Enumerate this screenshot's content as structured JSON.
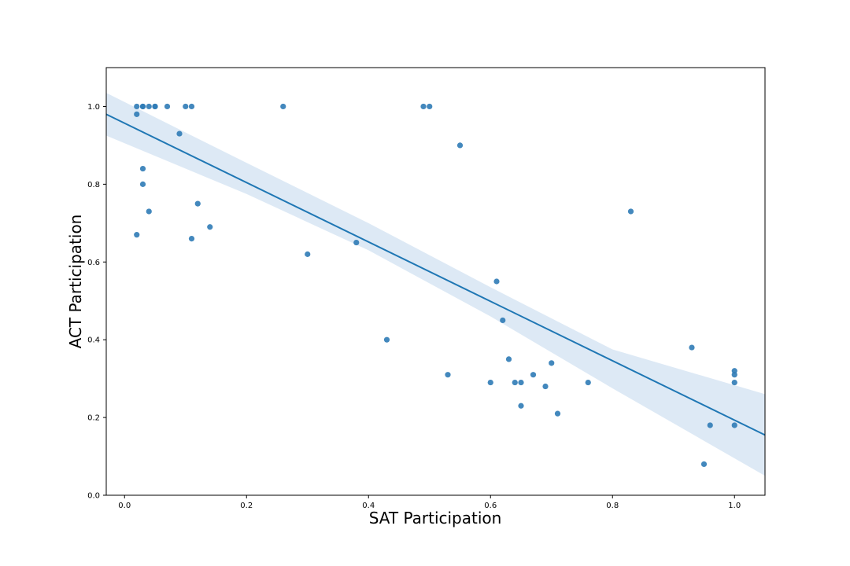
{
  "chart_data": {
    "type": "scatter",
    "title": "",
    "xlabel": "SAT Participation",
    "ylabel": "ACT Participation",
    "xlim": [
      -0.03,
      1.05
    ],
    "ylim": [
      0.0,
      1.1
    ],
    "xticks": [
      0.0,
      0.2,
      0.4,
      0.6,
      0.8,
      1.0
    ],
    "xtick_labels": [
      "0.0",
      "0.2",
      "0.4",
      "0.6",
      "0.8",
      "1.0"
    ],
    "yticks": [
      0.0,
      0.2,
      0.4,
      0.6,
      0.8,
      1.0
    ],
    "ytick_labels": [
      "0.0",
      "0.2",
      "0.4",
      "0.6",
      "0.8",
      "1.0"
    ],
    "grid": false,
    "colors": {
      "points": "#2f7bb6",
      "regression_line": "#1f77b4",
      "confidence_band": "#c6dbef"
    },
    "points": [
      {
        "x": 0.02,
        "y": 1.0
      },
      {
        "x": 0.03,
        "y": 1.0
      },
      {
        "x": 0.03,
        "y": 1.0
      },
      {
        "x": 0.04,
        "y": 1.0
      },
      {
        "x": 0.05,
        "y": 1.0
      },
      {
        "x": 0.05,
        "y": 1.0
      },
      {
        "x": 0.07,
        "y": 1.0
      },
      {
        "x": 0.1,
        "y": 1.0
      },
      {
        "x": 0.11,
        "y": 1.0
      },
      {
        "x": 0.26,
        "y": 1.0
      },
      {
        "x": 0.49,
        "y": 1.0
      },
      {
        "x": 0.5,
        "y": 1.0
      },
      {
        "x": 0.02,
        "y": 0.98
      },
      {
        "x": 0.09,
        "y": 0.93
      },
      {
        "x": 0.55,
        "y": 0.9
      },
      {
        "x": 0.03,
        "y": 0.84
      },
      {
        "x": 0.03,
        "y": 0.8
      },
      {
        "x": 0.12,
        "y": 0.75
      },
      {
        "x": 0.04,
        "y": 0.73
      },
      {
        "x": 0.83,
        "y": 0.73
      },
      {
        "x": 0.14,
        "y": 0.69
      },
      {
        "x": 0.02,
        "y": 0.67
      },
      {
        "x": 0.11,
        "y": 0.66
      },
      {
        "x": 0.38,
        "y": 0.65
      },
      {
        "x": 0.3,
        "y": 0.62
      },
      {
        "x": 0.61,
        "y": 0.55
      },
      {
        "x": 0.62,
        "y": 0.45
      },
      {
        "x": 0.43,
        "y": 0.4
      },
      {
        "x": 0.93,
        "y": 0.38
      },
      {
        "x": 0.63,
        "y": 0.35
      },
      {
        "x": 0.7,
        "y": 0.34
      },
      {
        "x": 1.0,
        "y": 0.32
      },
      {
        "x": 0.53,
        "y": 0.31
      },
      {
        "x": 0.67,
        "y": 0.31
      },
      {
        "x": 1.0,
        "y": 0.31
      },
      {
        "x": 0.6,
        "y": 0.29
      },
      {
        "x": 0.64,
        "y": 0.29
      },
      {
        "x": 0.65,
        "y": 0.29
      },
      {
        "x": 0.76,
        "y": 0.29
      },
      {
        "x": 1.0,
        "y": 0.29
      },
      {
        "x": 0.69,
        "y": 0.28
      },
      {
        "x": 0.65,
        "y": 0.23
      },
      {
        "x": 0.71,
        "y": 0.21
      },
      {
        "x": 0.96,
        "y": 0.18
      },
      {
        "x": 1.0,
        "y": 0.18
      },
      {
        "x": 0.95,
        "y": 0.08
      }
    ],
    "regression_line": {
      "x": [
        -0.03,
        1.05
      ],
      "y": [
        0.98,
        0.155
      ]
    },
    "confidence_band": {
      "x": [
        -0.03,
        0.2,
        0.4,
        0.6,
        0.8,
        1.05
      ],
      "lower": [
        0.925,
        0.775,
        0.63,
        0.46,
        0.275,
        0.05
      ],
      "upper": [
        1.035,
        0.855,
        0.7,
        0.535,
        0.375,
        0.26
      ]
    }
  }
}
